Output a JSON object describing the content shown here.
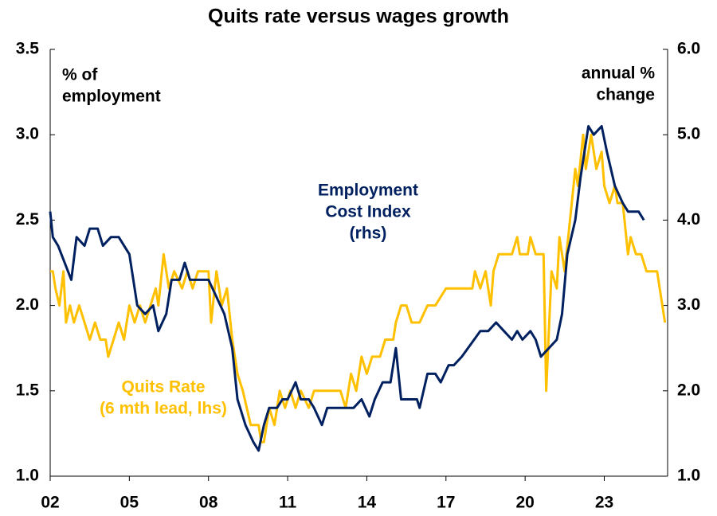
{
  "chart_data": {
    "type": "line",
    "title": "Quits rate versus wages growth",
    "y_label": [
      "% of",
      "employment"
    ],
    "y2_label": [
      "annual %",
      "change"
    ],
    "xlim": [
      2002,
      2025.4
    ],
    "xticks": [
      {
        "value": 2002,
        "label": "02"
      },
      {
        "value": 2005,
        "label": "05"
      },
      {
        "value": 2008,
        "label": "08"
      },
      {
        "value": 2011,
        "label": "11"
      },
      {
        "value": 2014,
        "label": "14"
      },
      {
        "value": 2017,
        "label": "17"
      },
      {
        "value": 2020,
        "label": "20"
      },
      {
        "value": 2023,
        "label": "23"
      }
    ],
    "ylim": [
      1.0,
      3.5
    ],
    "yticks": [
      {
        "value": 1.0,
        "label": "1.0"
      },
      1.5,
      {
        "value": 2.0,
        "label": "2.0"
      },
      2.5,
      {
        "value": 3.0,
        "label": "3.0"
      },
      3.5
    ],
    "y2lim": [
      1.0,
      6.0
    ],
    "y2ticks": [
      {
        "value": 1.0,
        "label": "1.0"
      },
      {
        "value": 2.0,
        "label": "2.0"
      },
      {
        "value": 3.0,
        "label": "3.0"
      },
      {
        "value": 4.0,
        "label": "4.0"
      },
      {
        "value": 5.0,
        "label": "5.0"
      },
      {
        "value": 6.0,
        "label": "6.0"
      }
    ],
    "series": [
      {
        "name": [
          "Quits Rate",
          "(6 mth lead, lhs)"
        ],
        "color": "#ffc000",
        "axis": "y",
        "x": [
          2002.0,
          2002.1,
          2002.2,
          2002.35,
          2002.5,
          2002.6,
          2002.75,
          2002.9,
          2003.1,
          2003.3,
          2003.5,
          2003.7,
          2003.9,
          2004.1,
          2004.2,
          2004.4,
          2004.6,
          2004.8,
          2005.0,
          2005.2,
          2005.4,
          2005.6,
          2005.8,
          2006.0,
          2006.1,
          2006.3,
          2006.5,
          2006.7,
          2007.0,
          2007.2,
          2007.4,
          2007.6,
          2008.0,
          2008.1,
          2008.3,
          2008.5,
          2008.7,
          2008.9,
          2009.1,
          2009.3,
          2009.6,
          2009.9,
          2010.0,
          2010.1,
          2010.3,
          2010.5,
          2010.7,
          2010.9,
          2011.1,
          2011.3,
          2011.5,
          2011.8,
          2012.0,
          2012.5,
          2013.0,
          2013.2,
          2013.4,
          2013.6,
          2013.8,
          2014.0,
          2014.2,
          2014.5,
          2014.7,
          2015.0,
          2015.1,
          2015.3,
          2015.5,
          2015.7,
          2016.0,
          2016.3,
          2016.6,
          2017.0,
          2017.5,
          2018.0,
          2018.1,
          2018.3,
          2018.5,
          2018.7,
          2018.8,
          2019.0,
          2019.5,
          2019.7,
          2019.8,
          2020.1,
          2020.2,
          2020.4,
          2020.7,
          2020.8,
          2021.0,
          2021.2,
          2021.3,
          2021.5,
          2021.7,
          2021.9,
          2022.0,
          2022.2,
          2022.3,
          2022.5,
          2022.7,
          2022.9,
          2023.0,
          2023.2,
          2023.4,
          2023.5,
          2023.7,
          2023.9,
          2024.0,
          2024.2,
          2024.4,
          2024.6,
          2025.0,
          2025.2,
          2025.3
        ],
        "values": [
          2.2,
          2.2,
          2.1,
          2.0,
          2.2,
          1.9,
          2.0,
          1.9,
          2.0,
          1.9,
          1.8,
          1.9,
          1.8,
          1.8,
          1.7,
          1.8,
          1.9,
          1.8,
          2.0,
          1.9,
          2.0,
          1.9,
          2.0,
          2.1,
          2.0,
          2.3,
          2.1,
          2.2,
          2.1,
          2.2,
          2.1,
          2.2,
          2.2,
          1.9,
          2.2,
          2.0,
          2.1,
          1.8,
          1.6,
          1.5,
          1.3,
          1.3,
          1.2,
          1.2,
          1.4,
          1.3,
          1.5,
          1.4,
          1.5,
          1.4,
          1.5,
          1.4,
          1.5,
          1.5,
          1.5,
          1.4,
          1.6,
          1.5,
          1.7,
          1.6,
          1.7,
          1.7,
          1.8,
          1.8,
          1.9,
          2.0,
          2.0,
          1.9,
          1.9,
          2.0,
          2.0,
          2.1,
          2.1,
          2.1,
          2.2,
          2.1,
          2.2,
          2.0,
          2.2,
          2.3,
          2.3,
          2.4,
          2.3,
          2.3,
          2.4,
          2.3,
          2.3,
          1.5,
          2.2,
          2.1,
          2.4,
          2.2,
          2.5,
          2.8,
          2.7,
          3.0,
          2.8,
          3.0,
          2.8,
          2.9,
          2.7,
          2.6,
          2.7,
          2.6,
          2.6,
          2.3,
          2.4,
          2.3,
          2.3,
          2.2,
          2.2,
          2.0,
          1.9
        ]
      },
      {
        "name": [
          "Employment",
          "Cost Index",
          "(rhs)"
        ],
        "color": "#002060",
        "axis": "y2",
        "x": [
          2002.0,
          2002.1,
          2002.3,
          2002.8,
          2003.0,
          2003.3,
          2003.5,
          2003.8,
          2004.0,
          2004.3,
          2004.6,
          2005.0,
          2005.3,
          2005.6,
          2005.9,
          2006.1,
          2006.4,
          2006.6,
          2006.9,
          2007.1,
          2007.3,
          2007.6,
          2008.0,
          2008.3,
          2008.6,
          2008.9,
          2009.1,
          2009.4,
          2009.7,
          2009.9,
          2010.1,
          2010.3,
          2010.6,
          2010.8,
          2011.0,
          2011.3,
          2011.5,
          2011.8,
          2012.0,
          2012.3,
          2012.5,
          2013.0,
          2013.5,
          2013.8,
          2014.1,
          2014.3,
          2014.6,
          2014.9,
          2015.1,
          2015.3,
          2015.6,
          2015.9,
          2016.0,
          2016.3,
          2016.6,
          2016.8,
          2017.1,
          2017.3,
          2017.6,
          2018.3,
          2018.6,
          2018.9,
          2019.2,
          2019.5,
          2019.7,
          2019.9,
          2020.2,
          2020.4,
          2020.6,
          2020.9,
          2021.2,
          2021.4,
          2021.6,
          2021.9,
          2022.1,
          2022.4,
          2022.6,
          2022.9,
          2023.1,
          2023.4,
          2023.7,
          2023.9,
          2024.1,
          2024.3,
          2024.5
        ],
        "values": [
          4.1,
          3.8,
          3.7,
          3.3,
          3.8,
          3.7,
          3.9,
          3.9,
          3.7,
          3.8,
          3.8,
          3.6,
          3.0,
          2.9,
          3.0,
          2.7,
          2.9,
          3.3,
          3.3,
          3.5,
          3.3,
          3.3,
          3.3,
          3.1,
          2.9,
          2.5,
          1.9,
          1.6,
          1.4,
          1.3,
          1.6,
          1.8,
          1.8,
          1.9,
          1.9,
          2.1,
          1.9,
          1.9,
          1.8,
          1.6,
          1.8,
          1.8,
          1.8,
          1.9,
          1.7,
          1.9,
          2.1,
          2.1,
          2.5,
          1.9,
          1.9,
          1.9,
          1.8,
          2.2,
          2.2,
          2.1,
          2.3,
          2.3,
          2.4,
          2.7,
          2.7,
          2.8,
          2.7,
          2.6,
          2.7,
          2.6,
          2.7,
          2.6,
          2.4,
          2.5,
          2.6,
          2.9,
          3.6,
          4.0,
          4.5,
          5.1,
          5.0,
          5.1,
          4.8,
          4.4,
          4.2,
          4.1,
          4.1,
          4.1,
          4.0
        ]
      }
    ]
  }
}
